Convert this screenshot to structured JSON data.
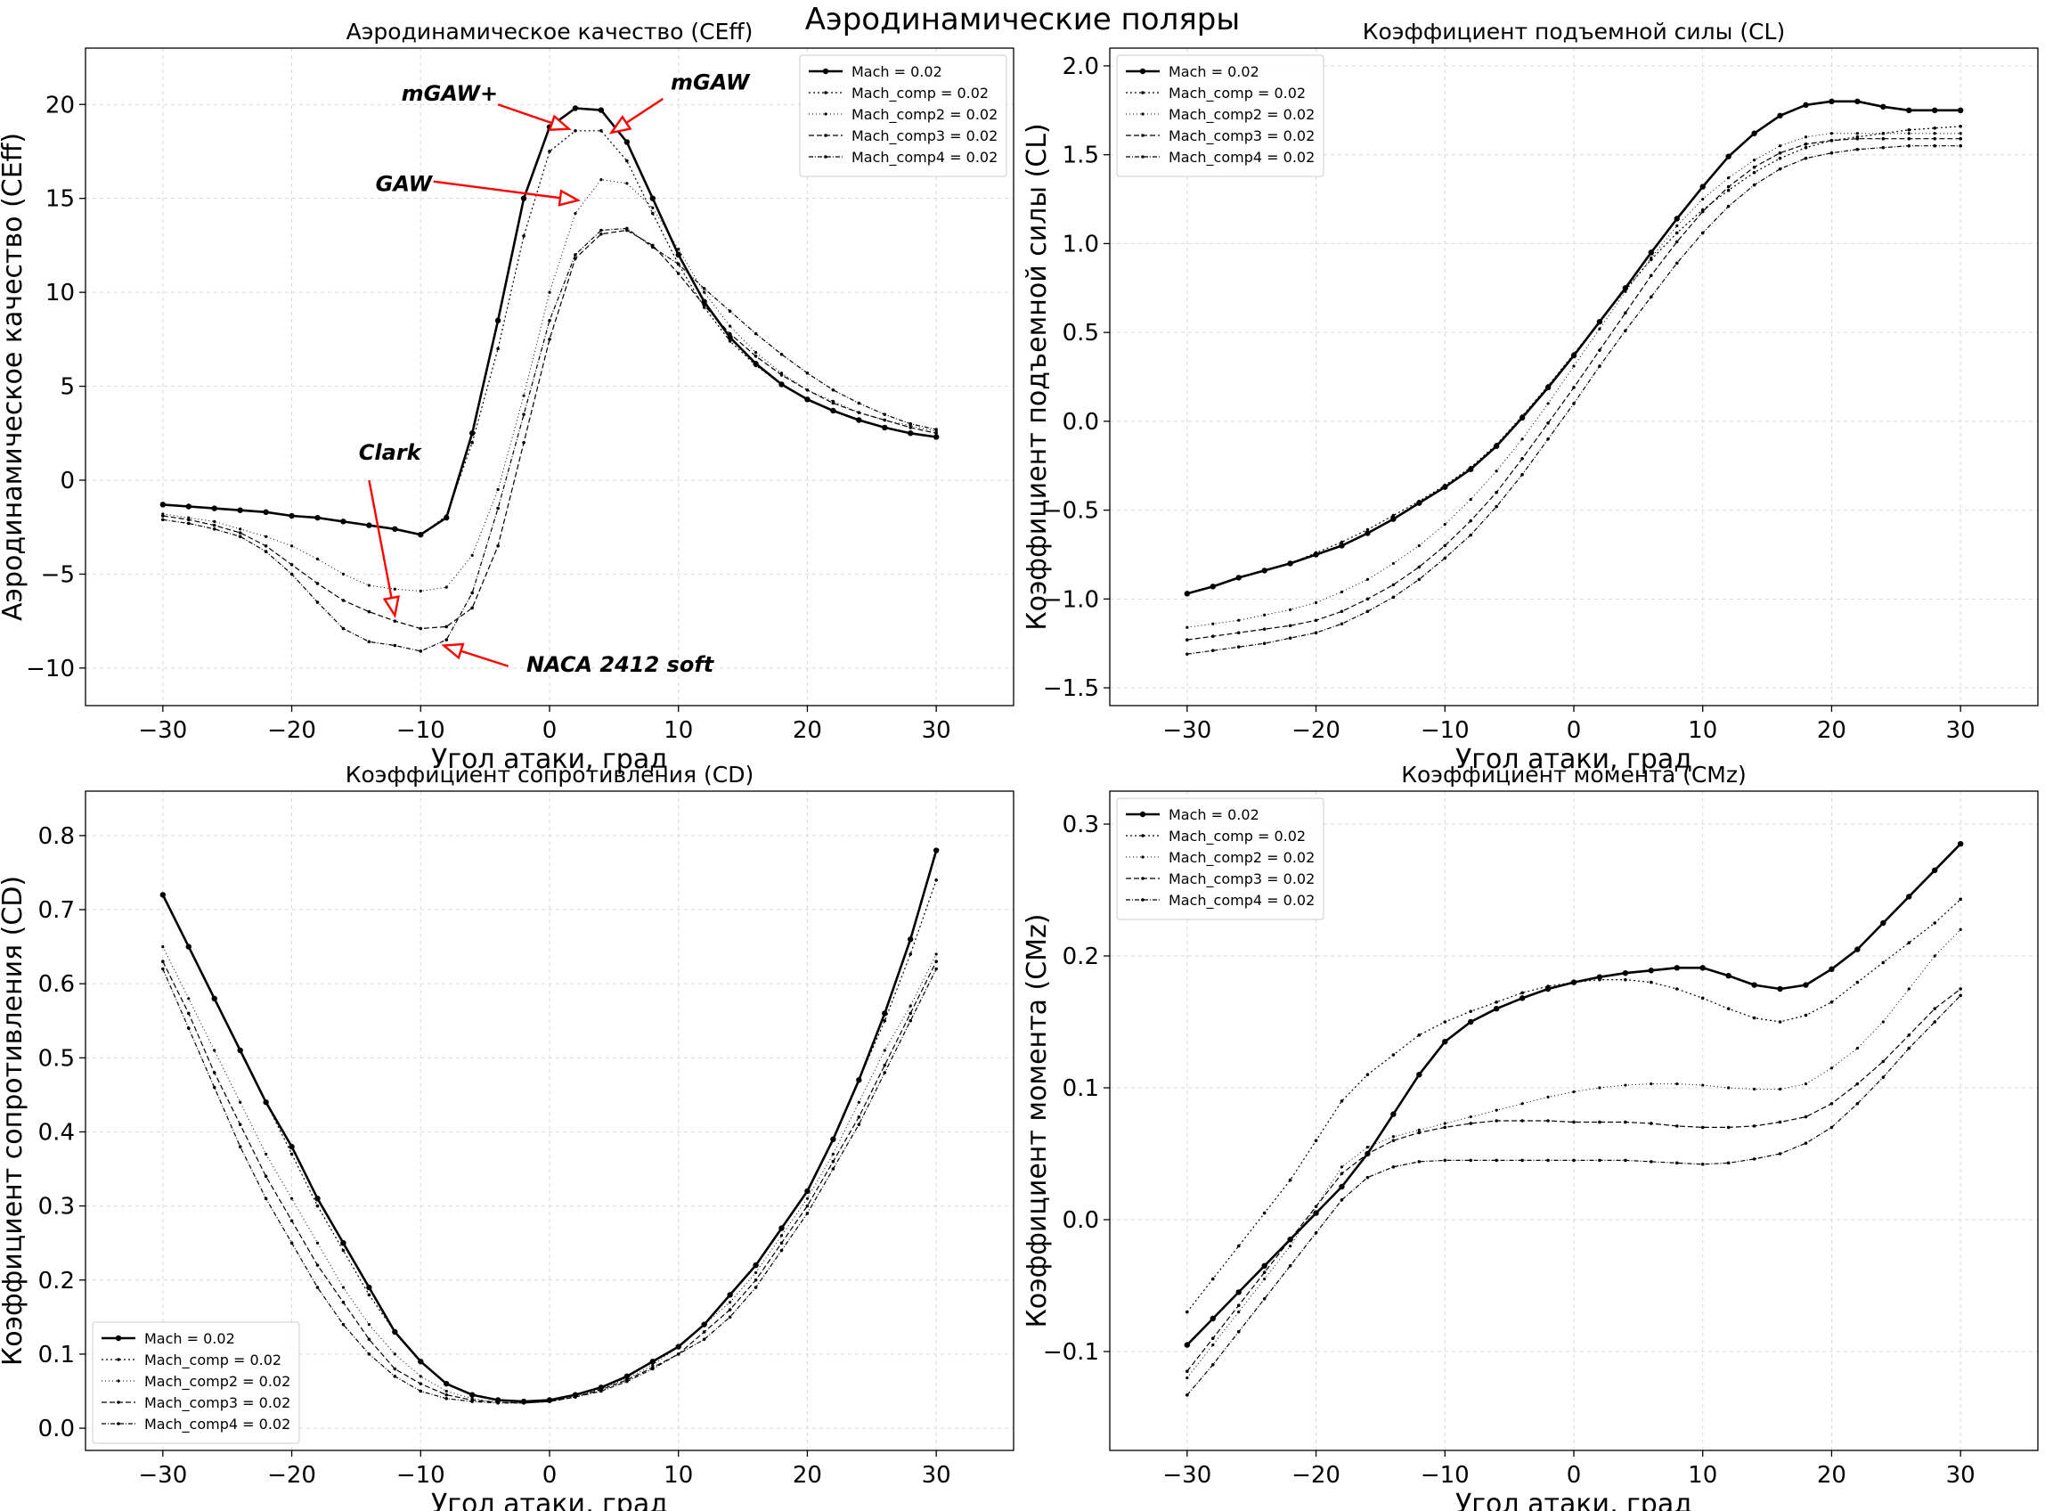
{
  "title": "Аэродинамические поляры",
  "series_names": [
    "Mach = 0.02",
    "Mach_comp = 0.02",
    "Mach_comp2 = 0.02",
    "Mach_comp3 = 0.02",
    "Mach_comp4 = 0.02"
  ],
  "chart_data": [
    {
      "id": "ceff",
      "type": "line",
      "title": "Аэродинамическое качество (CEff)",
      "xlabel": "Угол атаки, град",
      "ylabel": "Аэродинамическое качество (CEff)",
      "xlim": [
        -36,
        36
      ],
      "ylim": [
        -12,
        23
      ],
      "xticks": [
        -30,
        -20,
        -10,
        0,
        10,
        20,
        30
      ],
      "yticks": [
        -10,
        -5,
        0,
        5,
        10,
        15,
        20
      ],
      "grid": true,
      "legend": "top-right",
      "x": [
        -30,
        -28,
        -26,
        -24,
        -22,
        -20,
        -18,
        -16,
        -14,
        -12,
        -10,
        -8,
        -6,
        -4,
        -2,
        0,
        2,
        4,
        6,
        8,
        10,
        12,
        14,
        16,
        18,
        20,
        22,
        24,
        26,
        28,
        30
      ],
      "series": [
        {
          "name": "Mach = 0.02",
          "values": [
            -1.3,
            -1.4,
            -1.5,
            -1.6,
            -1.7,
            -1.9,
            -2.0,
            -2.2,
            -2.4,
            -2.6,
            -2.9,
            -2.0,
            2.5,
            8.5,
            15.0,
            18.8,
            19.8,
            19.7,
            18.0,
            15.0,
            12.0,
            9.5,
            7.6,
            6.2,
            5.1,
            4.3,
            3.7,
            3.2,
            2.8,
            2.5,
            2.3
          ]
        },
        {
          "name": "Mach_comp = 0.02",
          "values": [
            -1.3,
            -1.4,
            -1.5,
            -1.6,
            -1.7,
            -1.9,
            -2.0,
            -2.2,
            -2.4,
            -2.6,
            -2.9,
            -1.9,
            2.0,
            7.0,
            13.0,
            17.5,
            18.6,
            18.6,
            17.0,
            14.2,
            11.5,
            9.2,
            7.4,
            6.1,
            5.1,
            4.3,
            3.7,
            3.2,
            2.8,
            2.5,
            2.3
          ]
        },
        {
          "name": "Mach_comp2 = 0.02",
          "values": [
            -1.8,
            -2.0,
            -2.2,
            -2.6,
            -3.0,
            -3.5,
            -4.2,
            -5.0,
            -5.6,
            -5.8,
            -5.9,
            -5.7,
            -4.0,
            -0.5,
            4.5,
            10.0,
            14.2,
            16.0,
            15.8,
            14.5,
            12.3,
            10.0,
            8.2,
            6.8,
            5.7,
            4.8,
            4.2,
            3.6,
            3.2,
            2.9,
            2.6
          ]
        },
        {
          "name": "Mach_comp3 = 0.02",
          "values": [
            -1.9,
            -2.1,
            -2.4,
            -2.8,
            -3.5,
            -4.5,
            -5.5,
            -6.4,
            -7.0,
            -7.5,
            -7.9,
            -7.8,
            -6.8,
            -3.5,
            2.0,
            7.5,
            11.8,
            13.1,
            13.3,
            12.5,
            11.0,
            9.3,
            7.8,
            6.6,
            5.6,
            4.8,
            4.1,
            3.6,
            3.2,
            2.8,
            2.5
          ]
        },
        {
          "name": "Mach_comp4 = 0.02",
          "values": [
            -2.1,
            -2.3,
            -2.6,
            -3.0,
            -3.8,
            -5.0,
            -6.5,
            -7.9,
            -8.6,
            -8.8,
            -9.1,
            -8.5,
            -6.0,
            -1.5,
            3.5,
            8.5,
            12.0,
            13.3,
            13.4,
            12.4,
            11.5,
            10.2,
            9.0,
            7.8,
            6.7,
            5.7,
            4.8,
            4.1,
            3.5,
            3.0,
            2.7
          ]
        }
      ],
      "annotations": [
        "mGAW+",
        "mGAW",
        "GAW",
        "Clark",
        "NACA 2412 soft"
      ]
    },
    {
      "id": "cl",
      "type": "line",
      "title": "Коэффициент подъемной силы (CL)",
      "xlabel": "Угол атаки, град",
      "ylabel": "Коэффициент подъемной силы (CL)",
      "xlim": [
        -36,
        36
      ],
      "ylim": [
        -1.6,
        2.1
      ],
      "xticks": [
        -30,
        -20,
        -10,
        0,
        10,
        20,
        30
      ],
      "yticks": [
        -1.5,
        -1.0,
        -0.5,
        0.0,
        0.5,
        1.0,
        1.5,
        2.0
      ],
      "grid": true,
      "legend": "top-left",
      "x": [
        -30,
        -28,
        -26,
        -24,
        -22,
        -20,
        -18,
        -16,
        -14,
        -12,
        -10,
        -8,
        -6,
        -4,
        -2,
        0,
        2,
        4,
        6,
        8,
        10,
        12,
        14,
        16,
        18,
        20,
        22,
        24,
        26,
        28,
        30
      ],
      "series": [
        {
          "name": "Mach = 0.02",
          "values": [
            -0.97,
            -0.93,
            -0.88,
            -0.84,
            -0.8,
            -0.75,
            -0.7,
            -0.63,
            -0.55,
            -0.46,
            -0.37,
            -0.27,
            -0.14,
            0.02,
            0.19,
            0.37,
            0.56,
            0.75,
            0.95,
            1.14,
            1.32,
            1.49,
            1.62,
            1.72,
            1.78,
            1.8,
            1.8,
            1.77,
            1.75,
            1.75,
            1.75
          ]
        },
        {
          "name": "Mach_comp = 0.02",
          "values": [
            -0.97,
            -0.93,
            -0.88,
            -0.84,
            -0.8,
            -0.74,
            -0.68,
            -0.61,
            -0.53,
            -0.45,
            -0.36,
            -0.26,
            -0.13,
            0.03,
            0.2,
            0.38,
            0.56,
            0.74,
            0.91,
            1.06,
            1.19,
            1.3,
            1.4,
            1.48,
            1.54,
            1.58,
            1.6,
            1.62,
            1.64,
            1.65,
            1.66
          ]
        },
        {
          "name": "Mach_comp2 = 0.02",
          "values": [
            -1.16,
            -1.14,
            -1.12,
            -1.09,
            -1.06,
            -1.02,
            -0.96,
            -0.89,
            -0.8,
            -0.7,
            -0.58,
            -0.44,
            -0.28,
            -0.1,
            0.1,
            0.31,
            0.52,
            0.73,
            0.92,
            1.1,
            1.25,
            1.37,
            1.47,
            1.55,
            1.6,
            1.62,
            1.62,
            1.62,
            1.62,
            1.62,
            1.62
          ]
        },
        {
          "name": "Mach_comp3 = 0.02",
          "values": [
            -1.23,
            -1.21,
            -1.19,
            -1.17,
            -1.15,
            -1.12,
            -1.07,
            -1.0,
            -0.92,
            -0.82,
            -0.7,
            -0.56,
            -0.4,
            -0.21,
            -0.01,
            0.19,
            0.4,
            0.61,
            0.82,
            1.01,
            1.18,
            1.32,
            1.43,
            1.51,
            1.56,
            1.58,
            1.59,
            1.59,
            1.59,
            1.59,
            1.59
          ]
        },
        {
          "name": "Mach_comp4 = 0.02",
          "values": [
            -1.31,
            -1.29,
            -1.27,
            -1.25,
            -1.22,
            -1.19,
            -1.14,
            -1.07,
            -0.99,
            -0.89,
            -0.77,
            -0.64,
            -0.48,
            -0.3,
            -0.1,
            0.1,
            0.31,
            0.51,
            0.7,
            0.89,
            1.06,
            1.21,
            1.33,
            1.42,
            1.48,
            1.51,
            1.53,
            1.54,
            1.55,
            1.55,
            1.55
          ]
        }
      ]
    },
    {
      "id": "cd",
      "type": "line",
      "title": "Коэффициент сопротивления (CD)",
      "xlabel": "Угол атаки, град",
      "ylabel": "Коэффициент сопротивления (CD)",
      "xlim": [
        -36,
        36
      ],
      "ylim": [
        -0.03,
        0.86
      ],
      "xticks": [
        -30,
        -20,
        -10,
        0,
        10,
        20,
        30
      ],
      "yticks": [
        0.0,
        0.1,
        0.2,
        0.3,
        0.4,
        0.5,
        0.6,
        0.7,
        0.8
      ],
      "grid": true,
      "legend": "bottom-left",
      "x": [
        -30,
        -28,
        -26,
        -24,
        -22,
        -20,
        -18,
        -16,
        -14,
        -12,
        -10,
        -8,
        -6,
        -4,
        -2,
        0,
        2,
        4,
        6,
        8,
        10,
        12,
        14,
        16,
        18,
        20,
        22,
        24,
        26,
        28,
        30
      ],
      "series": [
        {
          "name": "Mach = 0.02",
          "values": [
            0.72,
            0.65,
            0.58,
            0.51,
            0.44,
            0.38,
            0.31,
            0.25,
            0.19,
            0.13,
            0.09,
            0.06,
            0.045,
            0.038,
            0.036,
            0.038,
            0.045,
            0.055,
            0.07,
            0.09,
            0.11,
            0.14,
            0.18,
            0.22,
            0.27,
            0.32,
            0.39,
            0.47,
            0.56,
            0.66,
            0.78
          ]
        },
        {
          "name": "Mach_comp = 0.02",
          "values": [
            0.72,
            0.65,
            0.58,
            0.51,
            0.44,
            0.37,
            0.3,
            0.24,
            0.18,
            0.13,
            0.09,
            0.06,
            0.045,
            0.038,
            0.036,
            0.038,
            0.045,
            0.055,
            0.07,
            0.09,
            0.11,
            0.14,
            0.18,
            0.22,
            0.27,
            0.32,
            0.39,
            0.47,
            0.55,
            0.64,
            0.74
          ]
        },
        {
          "name": "Mach_comp2 = 0.02",
          "values": [
            0.65,
            0.58,
            0.51,
            0.44,
            0.37,
            0.31,
            0.25,
            0.19,
            0.14,
            0.1,
            0.07,
            0.05,
            0.04,
            0.035,
            0.034,
            0.036,
            0.043,
            0.053,
            0.067,
            0.085,
            0.11,
            0.14,
            0.17,
            0.21,
            0.26,
            0.31,
            0.37,
            0.44,
            0.51,
            0.57,
            0.64
          ]
        },
        {
          "name": "Mach_comp3 = 0.02",
          "values": [
            0.63,
            0.56,
            0.48,
            0.41,
            0.34,
            0.28,
            0.22,
            0.17,
            0.12,
            0.08,
            0.06,
            0.045,
            0.038,
            0.035,
            0.034,
            0.036,
            0.042,
            0.052,
            0.065,
            0.082,
            0.1,
            0.13,
            0.16,
            0.2,
            0.25,
            0.3,
            0.36,
            0.42,
            0.49,
            0.56,
            0.63
          ]
        },
        {
          "name": "Mach_comp4 = 0.02",
          "values": [
            0.62,
            0.54,
            0.46,
            0.38,
            0.31,
            0.25,
            0.19,
            0.14,
            0.1,
            0.07,
            0.05,
            0.04,
            0.036,
            0.034,
            0.034,
            0.036,
            0.042,
            0.05,
            0.063,
            0.08,
            0.1,
            0.12,
            0.15,
            0.19,
            0.24,
            0.29,
            0.35,
            0.41,
            0.48,
            0.55,
            0.62
          ]
        }
      ]
    },
    {
      "id": "cmz",
      "type": "line",
      "title": "Коэффициент момента (CMz)",
      "xlabel": "Угол атаки, град",
      "ylabel": "Коэффициент момента (CMz)",
      "xlim": [
        -36,
        36
      ],
      "ylim": [
        -0.175,
        0.325
      ],
      "xticks": [
        -30,
        -20,
        -10,
        0,
        10,
        20,
        30
      ],
      "yticks": [
        -0.1,
        0.0,
        0.1,
        0.2,
        0.3
      ],
      "grid": true,
      "legend": "top-left",
      "x": [
        -30,
        -28,
        -26,
        -24,
        -22,
        -20,
        -18,
        -16,
        -14,
        -12,
        -10,
        -8,
        -6,
        -4,
        -2,
        0,
        2,
        4,
        6,
        8,
        10,
        12,
        14,
        16,
        18,
        20,
        22,
        24,
        26,
        28,
        30
      ],
      "series": [
        {
          "name": "Mach = 0.02",
          "values": [
            -0.095,
            -0.075,
            -0.055,
            -0.035,
            -0.015,
            0.005,
            0.025,
            0.05,
            0.08,
            0.11,
            0.135,
            0.15,
            0.16,
            0.168,
            0.175,
            0.18,
            0.184,
            0.187,
            0.189,
            0.191,
            0.191,
            0.185,
            0.178,
            0.175,
            0.178,
            0.19,
            0.205,
            0.225,
            0.245,
            0.265,
            0.285
          ]
        },
        {
          "name": "Mach_comp = 0.02",
          "values": [
            -0.07,
            -0.045,
            -0.02,
            0.005,
            0.03,
            0.06,
            0.09,
            0.11,
            0.125,
            0.14,
            0.15,
            0.158,
            0.165,
            0.172,
            0.177,
            0.18,
            0.182,
            0.182,
            0.18,
            0.175,
            0.168,
            0.16,
            0.153,
            0.15,
            0.155,
            0.165,
            0.18,
            0.195,
            0.21,
            0.225,
            0.243
          ]
        },
        {
          "name": "Mach_comp2 = 0.02",
          "values": [
            -0.12,
            -0.095,
            -0.07,
            -0.045,
            -0.02,
            0.01,
            0.04,
            0.055,
            0.063,
            0.068,
            0.073,
            0.078,
            0.083,
            0.088,
            0.093,
            0.097,
            0.1,
            0.102,
            0.103,
            0.103,
            0.102,
            0.1,
            0.099,
            0.099,
            0.103,
            0.115,
            0.13,
            0.15,
            0.175,
            0.2,
            0.22
          ]
        },
        {
          "name": "Mach_comp3 = 0.02",
          "values": [
            -0.115,
            -0.09,
            -0.065,
            -0.04,
            -0.015,
            0.01,
            0.035,
            0.05,
            0.06,
            0.066,
            0.07,
            0.073,
            0.075,
            0.075,
            0.075,
            0.074,
            0.074,
            0.074,
            0.073,
            0.071,
            0.07,
            0.07,
            0.071,
            0.074,
            0.078,
            0.088,
            0.103,
            0.12,
            0.14,
            0.16,
            0.175
          ]
        },
        {
          "name": "Mach_comp4 = 0.02",
          "values": [
            -0.133,
            -0.11,
            -0.085,
            -0.06,
            -0.035,
            -0.01,
            0.015,
            0.032,
            0.04,
            0.044,
            0.045,
            0.045,
            0.045,
            0.045,
            0.045,
            0.045,
            0.045,
            0.045,
            0.044,
            0.043,
            0.042,
            0.043,
            0.046,
            0.05,
            0.058,
            0.07,
            0.088,
            0.108,
            0.13,
            0.15,
            0.17
          ]
        }
      ]
    }
  ]
}
